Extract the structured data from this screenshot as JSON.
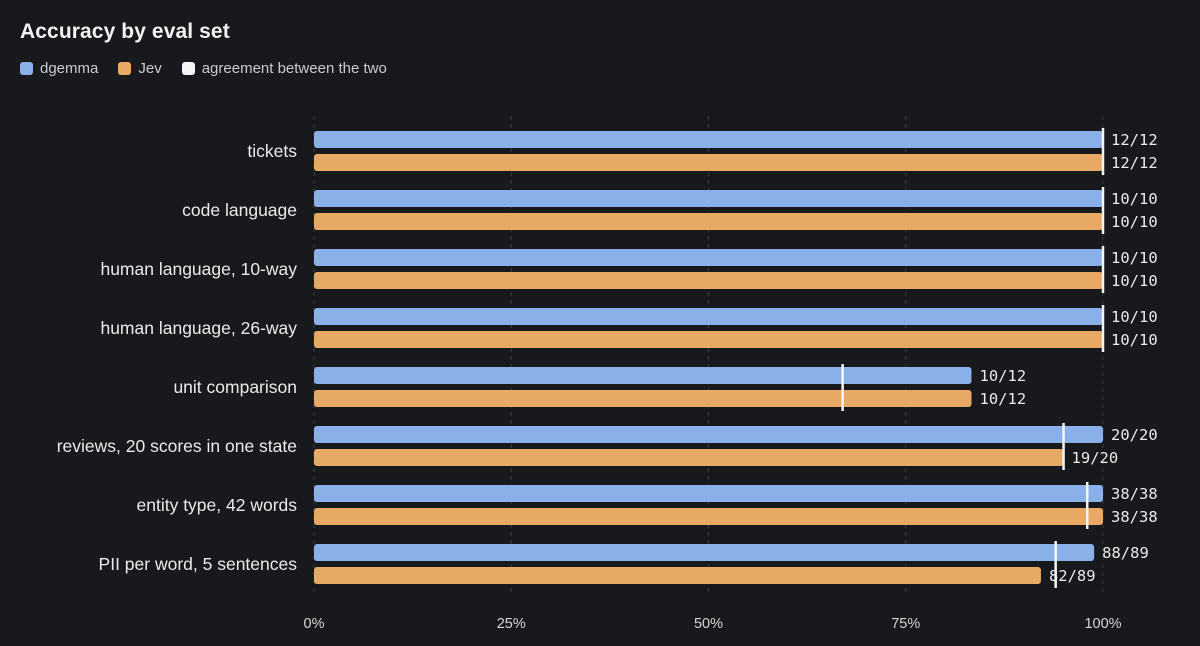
{
  "chart_data": {
    "type": "bar",
    "orientation": "horizontal",
    "title": "Accuracy by eval set",
    "categories": [
      "tickets",
      "code language",
      "human language, 10-way",
      "human language, 26-way",
      "unit comparison",
      "reviews, 20 scores in one state",
      "entity type, 42 words",
      "PII per word, 5 sentences"
    ],
    "series": [
      {
        "name": "dgemma",
        "color": "#8ab0ea",
        "correct": [
          12,
          10,
          10,
          10,
          10,
          20,
          38,
          88
        ],
        "total": [
          12,
          10,
          10,
          10,
          12,
          20,
          38,
          89
        ],
        "labels": [
          "12/12",
          "10/10",
          "10/10",
          "10/10",
          "10/12",
          "20/20",
          "38/38",
          "88/89"
        ]
      },
      {
        "name": "Jev",
        "color": "#e8a965",
        "correct": [
          12,
          10,
          10,
          10,
          10,
          19,
          38,
          82
        ],
        "total": [
          12,
          10,
          10,
          10,
          12,
          20,
          38,
          89
        ],
        "labels": [
          "12/12",
          "10/10",
          "10/10",
          "10/10",
          "10/12",
          "19/20",
          "38/38",
          "82/89"
        ]
      }
    ],
    "agreement": {
      "name": "agreement between the two",
      "color": "#f5f5f5",
      "values": [
        1.0,
        1.0,
        1.0,
        1.0,
        0.67,
        0.95,
        0.98,
        0.94
      ]
    },
    "xlim": [
      0,
      1
    ],
    "xticks": [
      0,
      0.25,
      0.5,
      0.75,
      1.0
    ],
    "xtick_labels": [
      "0%",
      "25%",
      "50%",
      "75%",
      "100%"
    ],
    "grid": "vertical dashed",
    "legend": "top-left"
  }
}
